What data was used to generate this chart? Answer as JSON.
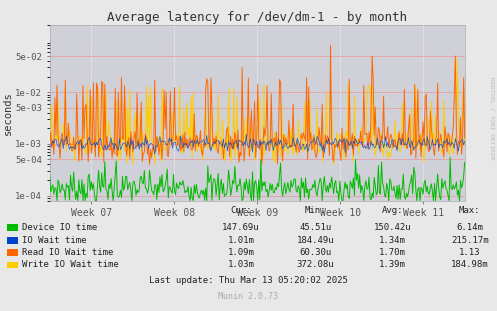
{
  "title": "Average latency for /dev/dm-1 - by month",
  "ylabel": "seconds",
  "bg_color": "#e8e8e8",
  "plot_bg_color": "#d0d0d8",
  "grid_color_major": "#ffffff",
  "grid_color_pink": "#e8a0a0",
  "x_tick_labels": [
    "Week 07",
    "Week 08",
    "Week 09",
    "Week 10",
    "Week 11"
  ],
  "ytick_labels": [
    "1e-04",
    "5e-04",
    "1e-03",
    "5e-03",
    "1e-02",
    "5e-02"
  ],
  "ytick_vals": [
    0.0001,
    0.0005,
    0.001,
    0.005,
    0.01,
    0.05
  ],
  "legend_entries": [
    {
      "label": "Device IO time",
      "color": "#00bb00"
    },
    {
      "label": "IO Wait time",
      "color": "#0044cc"
    },
    {
      "label": "Read IO Wait time",
      "color": "#ff6600"
    },
    {
      "label": "Write IO Wait time",
      "color": "#ffcc00"
    }
  ],
  "legend_stats": {
    "headers": [
      "Cur:",
      "Min:",
      "Avg:",
      "Max:"
    ],
    "rows": [
      [
        "147.69u",
        "45.51u",
        "150.42u",
        "6.14m"
      ],
      [
        "1.01m",
        "184.49u",
        "1.34m",
        "215.17m"
      ],
      [
        "1.09m",
        "60.30u",
        "1.70m",
        "1.13"
      ],
      [
        "1.03m",
        "372.08u",
        "1.39m",
        "184.98m"
      ]
    ]
  },
  "footer": "Last update: Thu Mar 13 05:20:02 2025",
  "munin_version": "Munin 2.0.73",
  "rrdtool_label": "RRDTOOL / TOBI OETIKER",
  "n_points": 400,
  "seed": 7
}
